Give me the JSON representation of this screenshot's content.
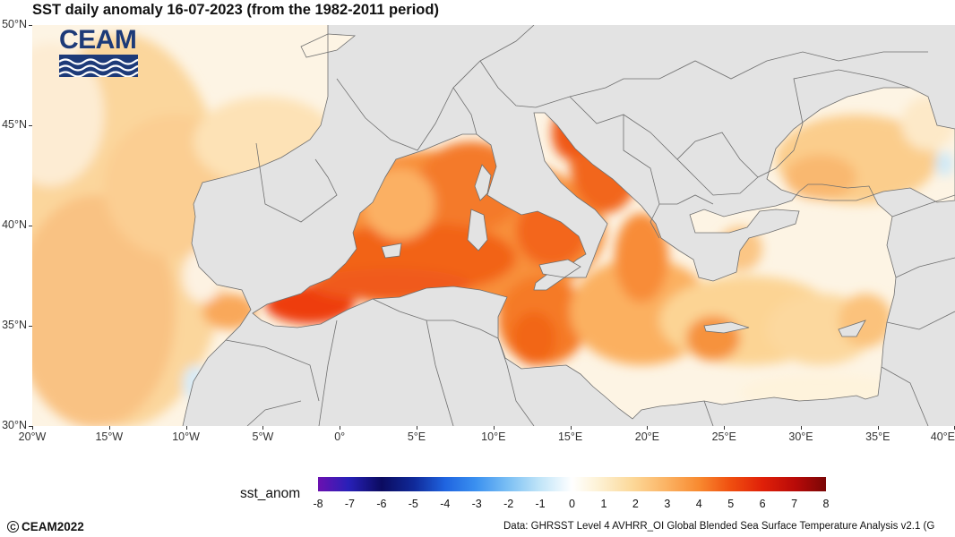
{
  "title": "SST daily anomaly 16-07-2023 (from the 1982-2011 period)",
  "logo": {
    "text": "CEAM",
    "band_color": "#1d3a78"
  },
  "map": {
    "type": "map",
    "variable": "sst_anom",
    "date": "16-07-2023",
    "lon_range": [
      -20,
      40
    ],
    "lat_range": [
      30,
      50
    ],
    "lon_ticks": [
      "20°W",
      "15°W",
      "10°W",
      "5°W",
      "0°",
      "5°E",
      "10°E",
      "15°E",
      "20°E",
      "25°E",
      "30°E",
      "35°E",
      "40°E"
    ],
    "lat_ticks": [
      "50°N",
      "45°N",
      "40°N",
      "35°N",
      "30°N"
    ],
    "land_color": "#e3e3e3"
  },
  "colorbar": {
    "title": "sst_anom",
    "min": -8,
    "max": 8,
    "labels": [
      "-8",
      "-7",
      "-6",
      "-5",
      "-4",
      "-3",
      "-2",
      "-1",
      "0",
      "1",
      "2",
      "3",
      "4",
      "5",
      "6",
      "7",
      "8"
    ]
  },
  "footer": {
    "copyright": "CEAM2022",
    "source": "Data: GHRSST Level 4 AVHRR_OI Global Blended Sea Surface Temperature Analysis v2.1 (G"
  }
}
